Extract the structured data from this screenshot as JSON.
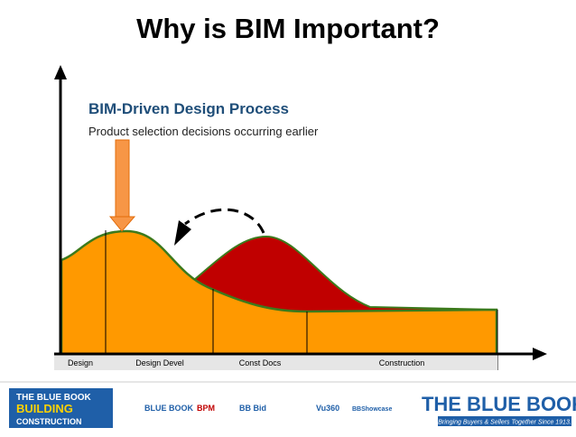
{
  "header": {
    "title": "Why is BIM Important?"
  },
  "diagram": {
    "heading": "BIM-Driven Design Process",
    "subheading": "Product selection decisions occurring earlier",
    "phases": [
      "Design",
      "Design Devel",
      "Const Docs",
      "Construction"
    ]
  },
  "footer": {
    "left_logo": [
      "THE BLUE BOOK",
      "BUILDING",
      "CONSTRUCTION"
    ],
    "partner_logos": [
      "BLUE BOOK",
      "BPM",
      "BB Bid",
      "Vu360",
      "BBShowcase"
    ],
    "right_logo": {
      "name": "THE BLUE BOOK",
      "tagline": "Bringing Buyers & Sellers Together Since 1913."
    }
  }
}
